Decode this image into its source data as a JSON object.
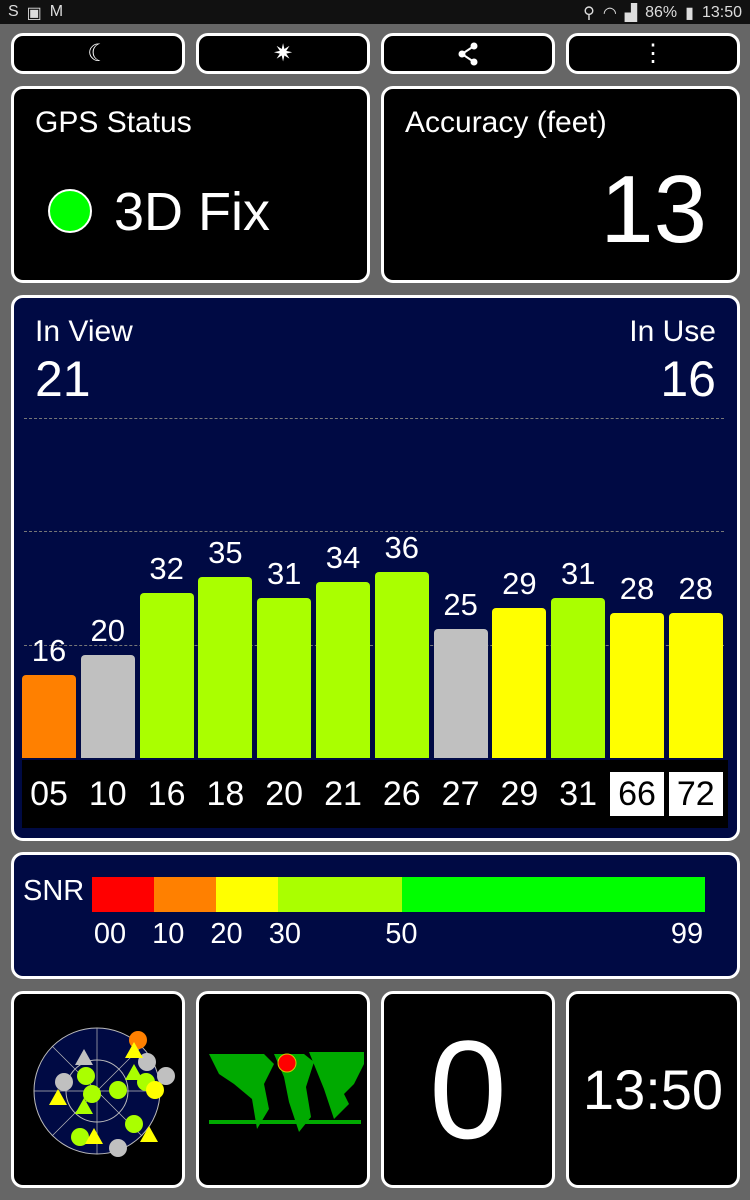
{
  "status_bar": {
    "left_icons": [
      "s-icon",
      "image-icon",
      "gmail-icon"
    ],
    "battery": "86%",
    "time": "13:50"
  },
  "toolbar": {
    "buttons": [
      {
        "icon": "moon-icon",
        "glyph": "☾"
      },
      {
        "icon": "compass-star-icon",
        "glyph": "✷"
      },
      {
        "icon": "share-icon",
        "glyph": "<"
      },
      {
        "icon": "more-vert-icon",
        "glyph": "⋮"
      }
    ]
  },
  "gps_status": {
    "title": "GPS Status",
    "value": "3D Fix",
    "indicator_color": "#00ff00"
  },
  "accuracy": {
    "title": "Accuracy (feet)",
    "value": "13"
  },
  "satellites": {
    "in_view_label": "In View",
    "in_view": "21",
    "in_use_label": "In Use",
    "in_use": "16"
  },
  "chart_data": {
    "type": "bar",
    "categories": [
      "05",
      "10",
      "16",
      "18",
      "20",
      "21",
      "26",
      "27",
      "29",
      "31",
      "66",
      "72"
    ],
    "values": [
      16,
      20,
      32,
      35,
      31,
      34,
      36,
      25,
      29,
      31,
      28,
      28
    ],
    "colors": [
      "#ff8000",
      "#c0c0c0",
      "#aaff00",
      "#aaff00",
      "#aaff00",
      "#aaff00",
      "#aaff00",
      "#c0c0c0",
      "#ffff00",
      "#aaff00",
      "#ffff00",
      "#ffff00"
    ],
    "highlighted_categories": [
      "66",
      "72"
    ],
    "grid": true
  },
  "snr": {
    "label": "SNR",
    "segments": [
      {
        "from": 0,
        "to": 10,
        "color": "#ff0000"
      },
      {
        "from": 10,
        "to": 20,
        "color": "#ff8000"
      },
      {
        "from": 20,
        "to": 30,
        "color": "#ffff00"
      },
      {
        "from": 30,
        "to": 50,
        "color": "#aaff00"
      },
      {
        "from": 50,
        "to": 99,
        "color": "#00ff00"
      }
    ],
    "ticks": [
      "00",
      "10",
      "20",
      "30",
      "50",
      "99"
    ]
  },
  "bottom": {
    "counter": "0",
    "clock": "13:50",
    "location_color": "#ff0000",
    "map_color": "#00aa00"
  }
}
